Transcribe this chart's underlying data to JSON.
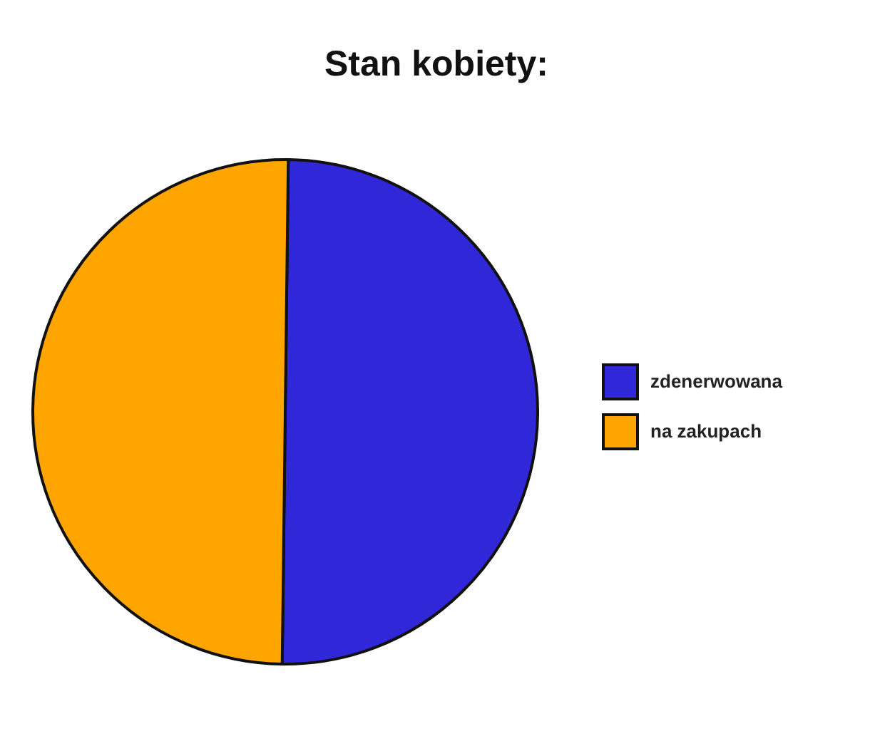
{
  "chart_data": {
    "type": "pie",
    "title": "Stan kobiety:",
    "categories": [
      "zdenerwowana",
      "na zakupach"
    ],
    "values": [
      50,
      50
    ],
    "colors": [
      "#3028d8",
      "#ffa500"
    ],
    "legend": "right"
  }
}
